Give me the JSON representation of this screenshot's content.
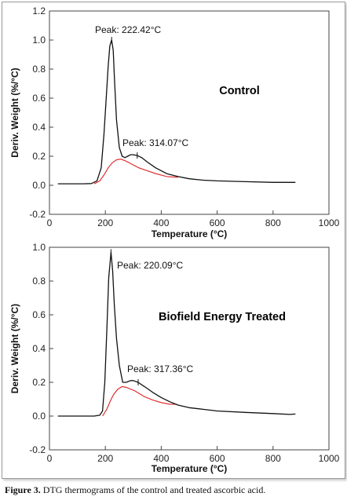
{
  "caption": {
    "label": "Figure 3.",
    "text": "DTG thermograms of the control and treated ascorbic acid."
  },
  "colors": {
    "primary_curve": "#111111",
    "secondary_curve": "#e02020"
  },
  "chart_data": [
    {
      "type": "line",
      "title": "Control",
      "xlabel": "Temperature (°C)",
      "ylabel": "Deriv. Weight (%/°C)",
      "xlim": [
        0,
        1000
      ],
      "ylim": [
        -0.2,
        1.2
      ],
      "xticks": [
        0,
        200,
        400,
        600,
        800,
        1000
      ],
      "yticks": [
        -0.2,
        0.0,
        0.2,
        0.4,
        0.6,
        0.8,
        1.0,
        1.2
      ],
      "tick_labels_x": [
        "0",
        "200",
        "400",
        "600",
        "800",
        "1000"
      ],
      "tick_labels_y": [
        "-0.2",
        "0.0",
        "0.2",
        "0.4",
        "0.6",
        "0.8",
        "1.0",
        "1.2"
      ],
      "annotations": [
        {
          "text": "Peak: 222.42°C",
          "x": 222.42,
          "y": 1.0
        },
        {
          "text": "Peak: 314.07°C",
          "x": 314.07,
          "y": 0.205
        }
      ],
      "series": [
        {
          "color": "#111111",
          "x": [
            30,
            80,
            120,
            150,
            170,
            185,
            195,
            203,
            210,
            216,
            222.42,
            228,
            233,
            240,
            250,
            260,
            270,
            280,
            290,
            300,
            314,
            330,
            350,
            380,
            420,
            460,
            500,
            550,
            600,
            700,
            800,
            880
          ],
          "y": [
            0.01,
            0.01,
            0.01,
            0.012,
            0.03,
            0.12,
            0.35,
            0.6,
            0.82,
            0.96,
            1.0,
            0.93,
            0.72,
            0.45,
            0.26,
            0.2,
            0.19,
            0.2,
            0.21,
            0.21,
            0.205,
            0.19,
            0.16,
            0.12,
            0.08,
            0.06,
            0.045,
            0.035,
            0.03,
            0.025,
            0.02,
            0.02
          ]
        },
        {
          "color": "#e02020",
          "x": [
            160,
            180,
            195,
            210,
            225,
            240,
            255,
            270,
            285,
            300,
            320,
            350,
            380,
            420,
            460
          ],
          "y": [
            0.01,
            0.03,
            0.07,
            0.12,
            0.155,
            0.175,
            0.18,
            0.17,
            0.155,
            0.14,
            0.12,
            0.1,
            0.08,
            0.06,
            0.055
          ]
        }
      ]
    },
    {
      "type": "line",
      "title": "Biofield Energy Treated",
      "xlabel": "Temperature (°C)",
      "ylabel": "Deriv. Weight (%/°C)",
      "xlim": [
        0,
        1000
      ],
      "ylim": [
        -0.2,
        1.0
      ],
      "xticks": [
        0,
        200,
        400,
        600,
        800,
        1000
      ],
      "yticks": [
        -0.2,
        0.0,
        0.2,
        0.4,
        0.6,
        0.8,
        1.0
      ],
      "tick_labels_x": [
        "0",
        "200",
        "400",
        "600",
        "800",
        "1000"
      ],
      "tick_labels_y": [
        "-0.2",
        "0.0",
        "0.2",
        "0.4",
        "0.6",
        "0.8",
        "1.0"
      ],
      "annotations": [
        {
          "text": "Peak: 220.09°C",
          "x": 220.09,
          "y": 0.97
        },
        {
          "text": "Peak: 317.36°C",
          "x": 317.36,
          "y": 0.2
        }
      ],
      "series": [
        {
          "color": "#111111",
          "x": [
            30,
            80,
            120,
            160,
            180,
            190,
            198,
            205,
            212,
            220.09,
            226,
            232,
            240,
            250,
            262,
            275,
            290,
            300,
            317,
            340,
            370,
            400,
            430,
            460,
            500,
            550,
            600,
            700,
            800,
            860,
            880
          ],
          "y": [
            0.0,
            0.0,
            0.0,
            0.0,
            0.005,
            0.03,
            0.2,
            0.5,
            0.82,
            0.97,
            0.86,
            0.66,
            0.46,
            0.3,
            0.2,
            0.2,
            0.21,
            0.21,
            0.2,
            0.175,
            0.14,
            0.11,
            0.085,
            0.065,
            0.05,
            0.04,
            0.03,
            0.022,
            0.015,
            0.01,
            0.012
          ]
        },
        {
          "color": "#e02020",
          "x": [
            190,
            205,
            218,
            230,
            245,
            260,
            275,
            290,
            305,
            320,
            340,
            370,
            400,
            430,
            455
          ],
          "y": [
            0.0,
            0.04,
            0.09,
            0.13,
            0.16,
            0.175,
            0.17,
            0.16,
            0.15,
            0.135,
            0.115,
            0.095,
            0.08,
            0.07,
            0.07
          ]
        }
      ]
    }
  ]
}
